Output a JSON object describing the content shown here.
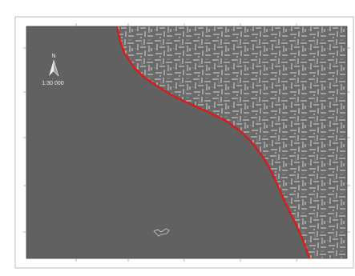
{
  "map": {
    "north_label": "N",
    "scale": "1:30 000"
  }
}
